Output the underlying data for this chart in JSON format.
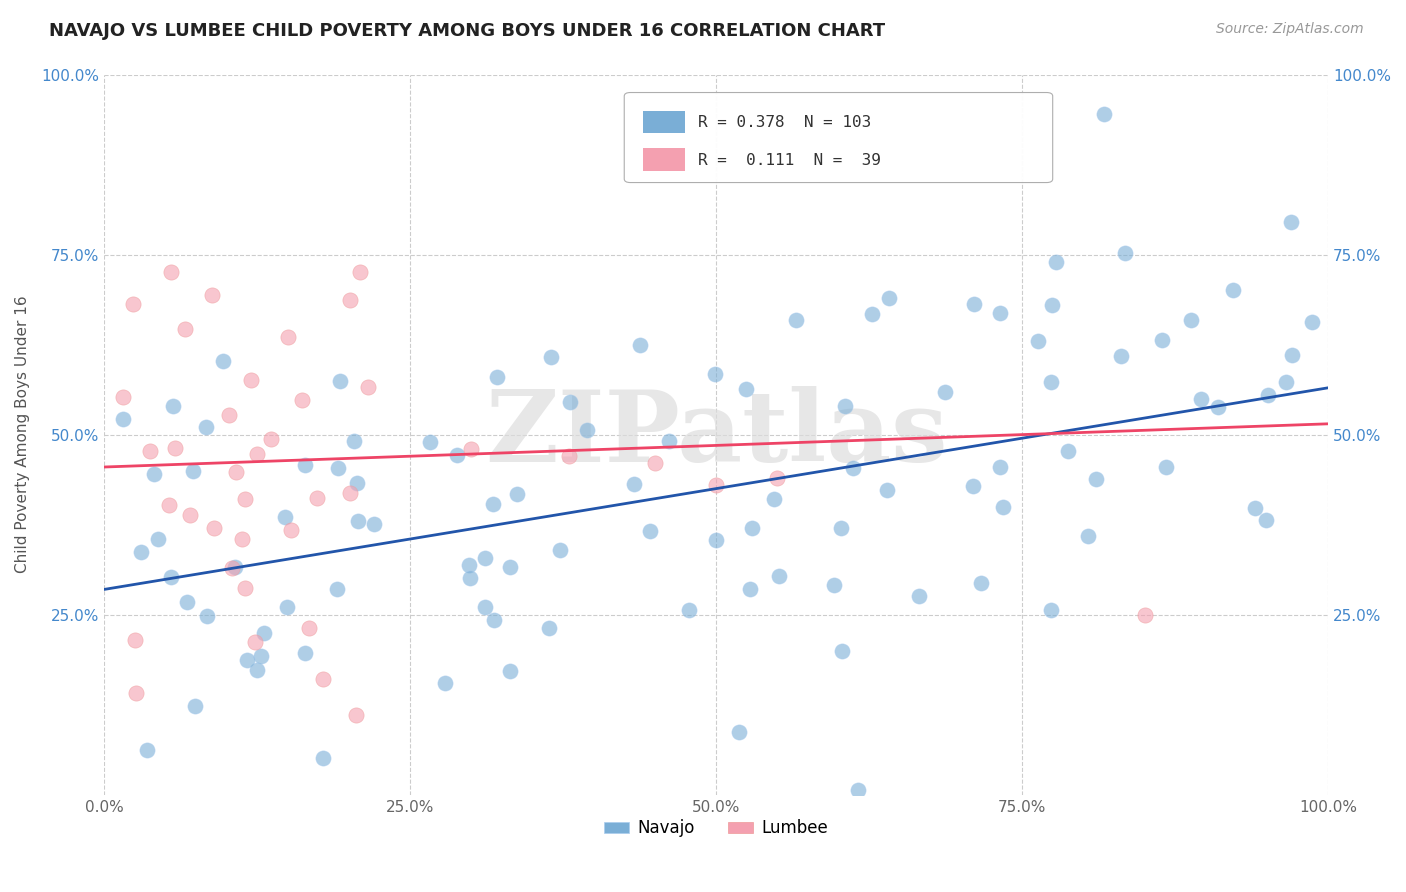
{
  "title": "NAVAJO VS LUMBEE CHILD POVERTY AMONG BOYS UNDER 16 CORRELATION CHART",
  "source": "Source: ZipAtlas.com",
  "ylabel": "Child Poverty Among Boys Under 16",
  "watermark": "ZIPatlas",
  "navajo_R": 0.378,
  "navajo_N": 103,
  "lumbee_R": 0.111,
  "lumbee_N": 39,
  "navajo_color": "#7aaed6",
  "lumbee_color": "#f4a0b0",
  "navajo_line_color": "#2255aa",
  "lumbee_line_color": "#ee4466",
  "xlim": [
    0,
    1
  ],
  "ylim": [
    0,
    1
  ],
  "xticks": [
    0,
    0.25,
    0.5,
    0.75,
    1.0
  ],
  "yticks": [
    0.25,
    0.5,
    0.75,
    1.0
  ],
  "xticklabels": [
    "0.0%",
    "25.0%",
    "50.0%",
    "75.0%",
    "100.0%"
  ],
  "yticklabels": [
    "25.0%",
    "50.0%",
    "75.0%",
    "100.0%"
  ],
  "navajo_line_x0": 0.0,
  "navajo_line_y0": 0.285,
  "navajo_line_x1": 1.0,
  "navajo_line_y1": 0.565,
  "lumbee_line_x0": 0.0,
  "lumbee_line_y0": 0.455,
  "lumbee_line_x1": 1.0,
  "lumbee_line_y1": 0.515
}
